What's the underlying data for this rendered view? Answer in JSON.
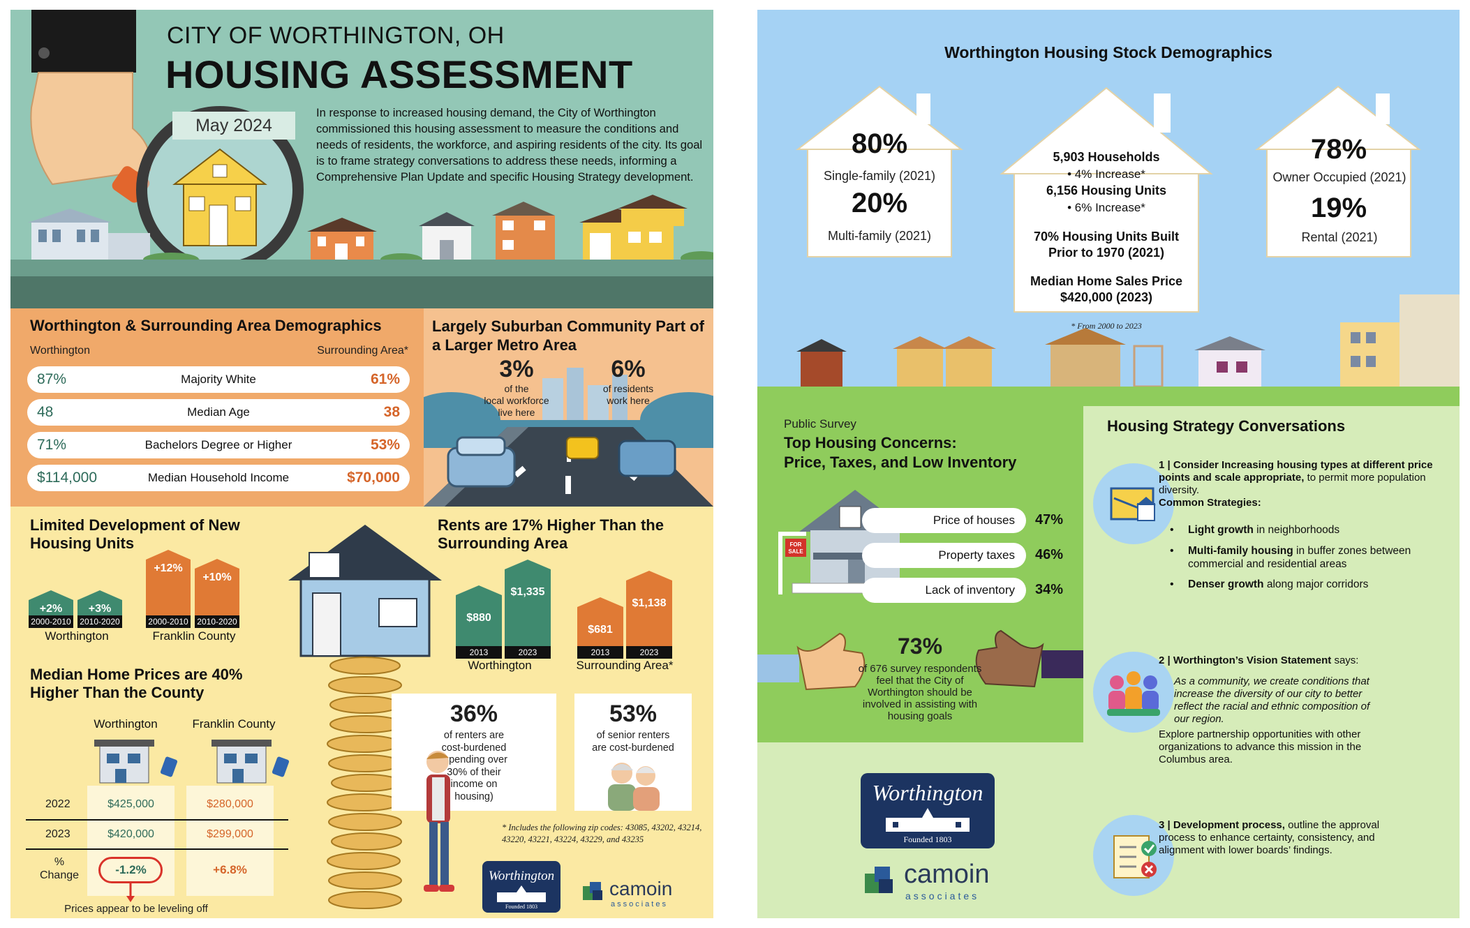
{
  "left": {
    "hero": {
      "city": "CITY OF WORTHINGTON, OH",
      "title": "HOUSING ASSESSMENT",
      "date": "May 2024",
      "intro": "In response to increased housing demand, the City of Worthington commissioned this housing assessment to measure the conditions and needs of residents, the workforce, and aspiring residents of the city. Its goal is to frame strategy conversations to address these needs, informing a Comprehensive Plan Update and specific Housing Strategy development."
    },
    "demographics": {
      "title": "Worthington & Surrounding Area Demographics",
      "left_header": "Worthington",
      "right_header": "Surrounding Area*",
      "rows": [
        {
          "left": "87%",
          "label": "Majority White",
          "right": "61%"
        },
        {
          "left": "48",
          "label": "Median Age",
          "right": "38"
        },
        {
          "left": "71%",
          "label": "Bachelors Degree or Higher",
          "right": "53%"
        },
        {
          "left": "$114,000",
          "label": "Median Household Income",
          "right": "$70,000"
        }
      ]
    },
    "suburban": {
      "title": "Largely Suburban Community Part of a Larger Metro Area",
      "stat1": {
        "value": "3%",
        "l1": "of the",
        "l2": "local workforce",
        "l3": "live here"
      },
      "stat2": {
        "value": "6%",
        "l1": "of residents",
        "l2": "work here"
      }
    },
    "development": {
      "title": "Limited Development of New Housing Units",
      "groups": [
        {
          "name": "Worthington",
          "bars": [
            {
              "value": "+2%",
              "pct": 2,
              "period": "2000-2010"
            },
            {
              "value": "+3%",
              "pct": 3,
              "period": "2010-2020"
            }
          ]
        },
        {
          "name": "Franklin County",
          "bars": [
            {
              "value": "+12%",
              "pct": 12,
              "period": "2000-2010"
            },
            {
              "value": "+10%",
              "pct": 10,
              "period": "2010-2020"
            }
          ]
        }
      ]
    },
    "rents": {
      "title": "Rents are 17% Higher Than the Surrounding Area",
      "groups": [
        {
          "name": "Worthington",
          "bars": [
            {
              "value": "$880",
              "amount": 880,
              "year": "2013"
            },
            {
              "value": "$1,335",
              "amount": 1335,
              "year": "2023"
            }
          ]
        },
        {
          "name": "Surrounding Area*",
          "bars": [
            {
              "value": "$681",
              "amount": 681,
              "year": "2013"
            },
            {
              "value": "$1,138",
              "amount": 1138,
              "year": "2023"
            }
          ]
        }
      ]
    },
    "home_prices": {
      "title": "Median Home Prices are 40% Higher Than the County",
      "col1": "Worthington",
      "col2": "Franklin County",
      "rows": [
        {
          "year": "2022",
          "a": "$425,000",
          "b": "$280,000"
        },
        {
          "year": "2023",
          "a": "$420,000",
          "b": "$299,000"
        }
      ],
      "change_label_1": "%",
      "change_label_2": "Change",
      "change_a": "-1.2%",
      "change_b": "+6.8%",
      "note": "Prices appear to be leveling off"
    },
    "burden": {
      "renters": {
        "value": "36%",
        "text": [
          "of renters are",
          "cost-burdened",
          "(spending over",
          "30% of their",
          "income on",
          "housing)"
        ]
      },
      "seniors": {
        "value": "53%",
        "text": [
          "of senior renters",
          "are cost-burdened"
        ]
      }
    },
    "footnote": "* Includes the following zip codes: 43085, 43202, 43214, 43220, 43221, 43224, 43229, and 43235",
    "logo": {
      "name": "Worthington",
      "founded": "Founded 1803",
      "partner": "camoin",
      "partner_sub": "associates"
    }
  },
  "right": {
    "stock": {
      "title": "Worthington Housing Stock Demographics",
      "house1": {
        "v1": "80%",
        "l1": "Single-family (2021)",
        "v2": "20%",
        "l2": "Multi-family (2021)"
      },
      "house2": {
        "households": "5,903 Households",
        "households_change": "4% Increase*",
        "units": "6,156 Housing Units",
        "units_change": "6% Increase*",
        "built_1": "70% Housing Units Built",
        "built_2": "Prior to 1970 (2021)",
        "price_1": "Median Home Sales Price",
        "price_2": "$420,000 (2023)"
      },
      "house3": {
        "v1": "78%",
        "l1": "Owner Occupied (2021)",
        "v2": "19%",
        "l2": "Rental (2021)"
      },
      "footnote": "* From 2000 to 2023"
    },
    "survey": {
      "kicker": "Public Survey",
      "title_1": "Top Housing Concerns:",
      "title_2": "Price, Taxes, and Low Inventory",
      "sign": "FOR SALE",
      "concerns": [
        {
          "label": "Price of houses",
          "value": "47%"
        },
        {
          "label": "Property taxes",
          "value": "46%"
        },
        {
          "label": "Lack of inventory",
          "value": "34%"
        }
      ],
      "stat": "73%",
      "stat_text": [
        "of 676 survey respondents",
        "feel that the City of",
        "Worthington should be",
        "involved in assisting with",
        "housing goals"
      ]
    },
    "strategy": {
      "title": "Housing Strategy Conversations",
      "item1": {
        "heading": "1 | Consider Increasing housing types at different price points and scale appropriate,",
        "rest": "to permit more population diversity.",
        "strategies_label": "Common Strategies:",
        "bullets": [
          {
            "bold": "Light growth",
            "rest": " in neighborhoods"
          },
          {
            "bold": "Multi-family housing",
            "rest": " in buffer zones between commercial and residential areas"
          },
          {
            "bold": "Denser growth",
            "rest": " along major corridors"
          }
        ]
      },
      "item2": {
        "heading": "2 | Worthington’s Vision Statement",
        "says": " says:",
        "quote": "As a community, we create conditions that increase the diversity of our city to better reflect the racial and ethnic composition of our region.",
        "explore": "Explore partnership opportunities with other organizations to advance this mission in the Columbus area."
      },
      "item3": {
        "heading": "3 | Development process,",
        "rest": " outline the approval process to enhance certainty, consistency, and alignment with lower boards’ findings."
      }
    },
    "logo": {
      "name": "Worthington",
      "founded": "Founded 1803",
      "partner": "camoin",
      "partner_sub": "associates"
    }
  },
  "colors": {
    "teal": "#93c7b6",
    "orange": "#f0a96a",
    "yellow": "#fbe9a3",
    "green_bar": "#3f8a6f",
    "orange_bar": "#e07a35",
    "blue": "#a5d2f4",
    "survey_green": "#8fcc5c",
    "strategy_green": "#d6ecb9",
    "navy": "#1c3461"
  }
}
